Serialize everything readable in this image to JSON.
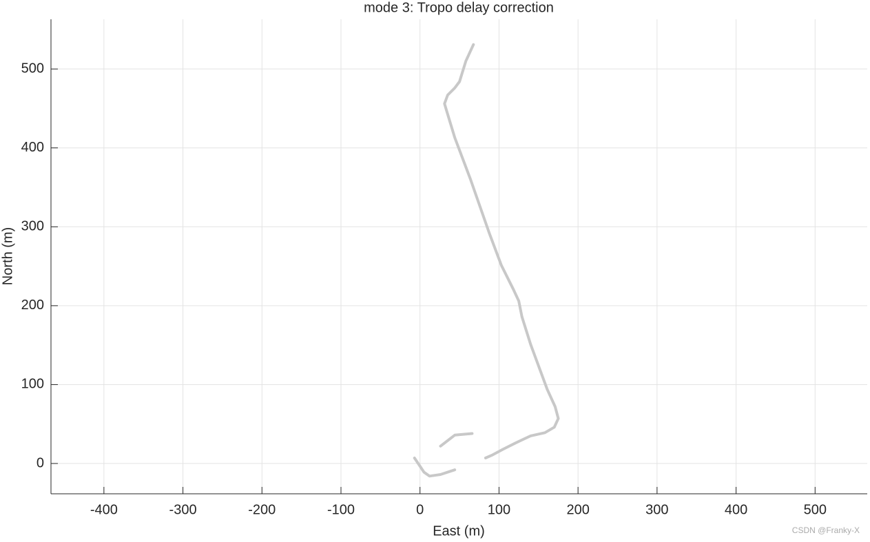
{
  "chart_data": {
    "type": "line",
    "title": "mode 3: Tropo delay correction",
    "x_label": "East (m)",
    "y_label": "North (m)",
    "watermark": "CSDN @Franky-X",
    "x": [
      -7,
      -1,
      5,
      12,
      26,
      44,
      null,
      26,
      44,
      66,
      null,
      83,
      92,
      105,
      121,
      140,
      158,
      170,
      175,
      171,
      161,
      140,
      129,
      125,
      118,
      103,
      88,
      64,
      44,
      34,
      31,
      35,
      44,
      50,
      58,
      67.6
    ],
    "series": [
      {
        "name": "trajectory",
        "color": "#c8c8c8",
        "values": [
          7,
          -2,
          -11,
          -16,
          -14,
          -8,
          null,
          22,
          36,
          38,
          null,
          7,
          11,
          18,
          26,
          35,
          39,
          46,
          57,
          72,
          94,
          151,
          186,
          206,
          221,
          251,
          291,
          360,
          413,
          446,
          456,
          467,
          476,
          484,
          510,
          531
        ]
      }
    ],
    "xlim": [
      -467,
      566
    ],
    "ylim": [
      -38.4,
      563
    ],
    "xticks": [
      -400,
      -300,
      -200,
      -100,
      0,
      100,
      200,
      300,
      400,
      500
    ],
    "yticks": [
      0,
      100,
      200,
      300,
      400,
      500
    ],
    "grid": true
  }
}
